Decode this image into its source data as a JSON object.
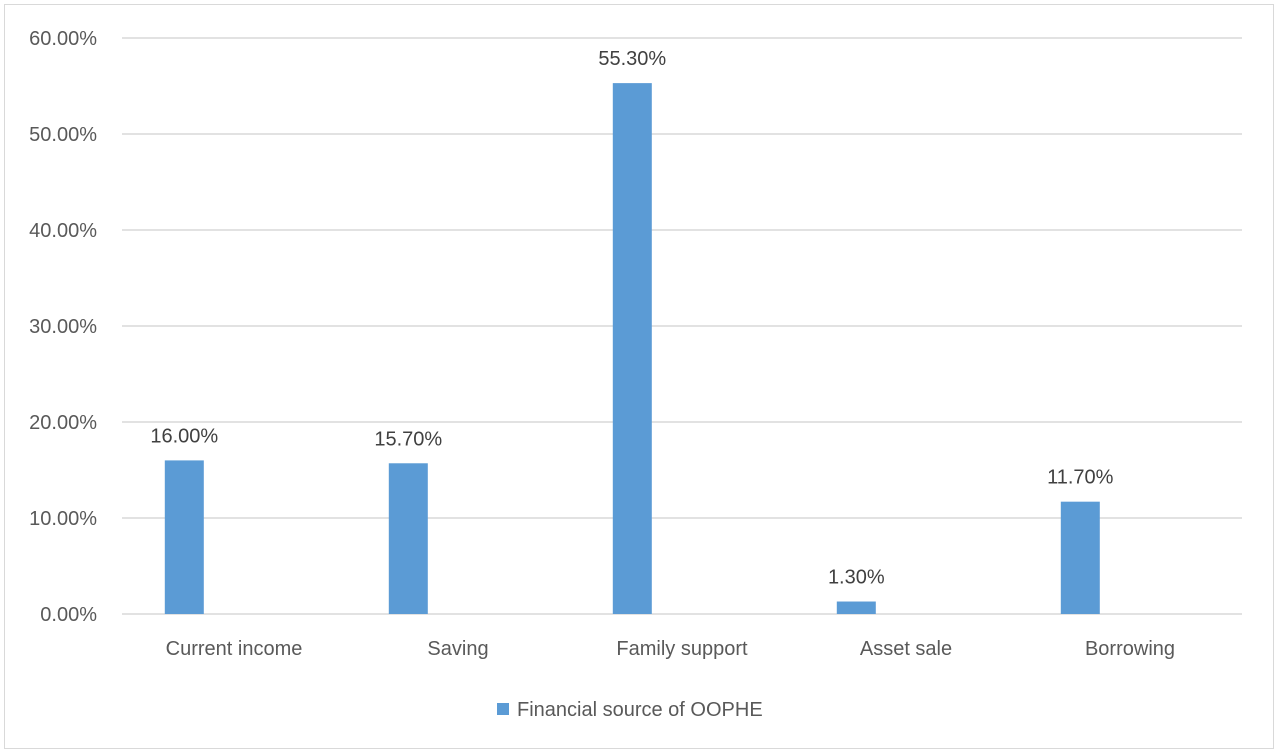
{
  "chart_data": {
    "type": "bar",
    "categories": [
      "Current income",
      "Saving",
      "Family support",
      "Asset sale",
      "Borrowing"
    ],
    "series": [
      {
        "name": "Financial source of OOPHE",
        "values": [
          16.0,
          15.7,
          55.3,
          1.3,
          11.7
        ],
        "data_labels": [
          "16.00%",
          "15.70%",
          "55.30%",
          "1.30%",
          "11.70%"
        ],
        "color": "#5b9bd5"
      }
    ],
    "y_ticks": [
      "0.00%",
      "10.00%",
      "20.00%",
      "30.00%",
      "40.00%",
      "50.00%",
      "60.00%"
    ],
    "ylim": [
      0,
      60
    ],
    "grid": true,
    "legend_position": "bottom",
    "title": "",
    "xlabel": "",
    "ylabel": ""
  }
}
